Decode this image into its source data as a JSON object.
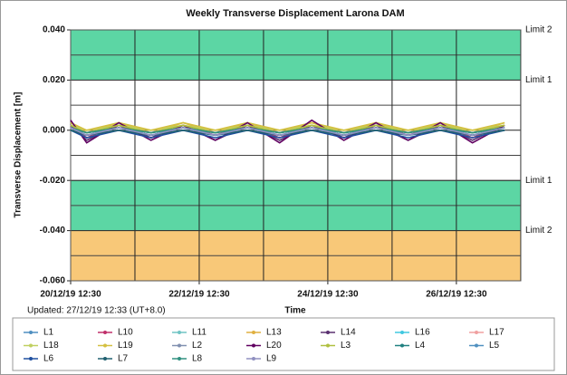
{
  "chart_data": {
    "type": "line",
    "title": "Weekly Transverse Displacement Larona DAM",
    "y_label": "Transverse Displacement [m]",
    "x_label": "Time",
    "note": "Updated: 27/12/19 12:33 (UT+8.0)",
    "x": [
      "2019-12-20 12:30",
      "2019-12-20 18:30",
      "2019-12-21 06:30",
      "2019-12-21 18:30",
      "2019-12-22 06:30",
      "2019-12-22 18:30",
      "2019-12-23 06:30",
      "2019-12-23 18:30",
      "2019-12-24 06:30",
      "2019-12-24 18:30",
      "2019-12-25 06:30",
      "2019-12-25 18:30",
      "2019-12-26 06:30",
      "2019-12-26 18:30",
      "2019-12-27 06:30"
    ],
    "xlim": [
      "2019-12-20 12:30",
      "2019-12-27 12:33"
    ],
    "xticks": [
      {
        "value": "2019-12-20 12:30",
        "label": "20/12/19 12:30"
      },
      {
        "value": "2019-12-22 12:30",
        "label": "22/12/19 12:30"
      },
      {
        "value": "2019-12-24 12:30",
        "label": "24/12/19 12:30"
      },
      {
        "value": "2019-12-26 12:30",
        "label": "26/12/19 12:30"
      }
    ],
    "minor_xticks": [
      "2019-12-21 12:30",
      "2019-12-23 12:30",
      "2019-12-25 12:30",
      "2019-12-27 12:30"
    ],
    "ylim": [
      -0.06,
      0.04
    ],
    "yticks": [
      {
        "value": 0.04,
        "label": "0.040"
      },
      {
        "value": 0.02,
        "label": "0.020"
      },
      {
        "value": 0,
        "label": "0.000"
      },
      {
        "value": -0.02,
        "label": "-0.020"
      },
      {
        "value": -0.04,
        "label": "-0.040"
      },
      {
        "value": -0.06,
        "label": "-0.060"
      }
    ],
    "minor_yticks": [
      0.03,
      0.01,
      -0.01,
      -0.03,
      -0.05
    ],
    "grid": true,
    "zones": [
      {
        "from": 0.02,
        "to": 0.04,
        "color": "#5cd6a4"
      },
      {
        "from": -0.04,
        "to": -0.02,
        "color": "#5cd6a4"
      },
      {
        "from": -0.06,
        "to": -0.04,
        "color": "#f8c878"
      }
    ],
    "limits": [
      {
        "label": "Limit 2",
        "value": 0.04
      },
      {
        "label": "Limit 1",
        "value": 0.02
      },
      {
        "label": "Limit 1",
        "value": -0.02
      },
      {
        "label": "Limit 2",
        "value": -0.04
      }
    ],
    "series": [
      {
        "name": "L1",
        "color": "#4f8fc0",
        "values": [
          0.001,
          -0.002,
          0.001,
          -0.002,
          0.001,
          -0.002,
          0.001,
          -0.002,
          0.001,
          -0.002,
          0.001,
          -0.002,
          0.001,
          -0.002,
          0.001
        ]
      },
      {
        "name": "L10",
        "color": "#c0306a",
        "values": [
          0.002,
          -0.003,
          0.002,
          -0.003,
          0.002,
          -0.002,
          0.002,
          -0.003,
          0.002,
          -0.003,
          0.002,
          -0.002,
          0.002,
          -0.003,
          0.002
        ]
      },
      {
        "name": "L11",
        "color": "#70c4c4",
        "values": [
          0.001,
          -0.001,
          0.001,
          -0.001,
          0.001,
          -0.001,
          0.001,
          -0.001,
          0.001,
          -0.001,
          0.001,
          -0.001,
          0.001,
          -0.001,
          0.001
        ]
      },
      {
        "name": "L13",
        "color": "#e0b040",
        "values": [
          0.003,
          -0.001,
          0.003,
          -0.001,
          0.003,
          -0.001,
          0.003,
          -0.001,
          0.003,
          -0.001,
          0.003,
          -0.001,
          0.003,
          -0.001,
          0.003
        ]
      },
      {
        "name": "L14",
        "color": "#5a3070",
        "values": [
          0.002,
          -0.004,
          0.002,
          -0.003,
          0.002,
          -0.004,
          0.002,
          -0.004,
          0.002,
          -0.003,
          0.002,
          -0.004,
          0.002,
          -0.004,
          0.002
        ]
      },
      {
        "name": "L16",
        "color": "#40c8e0",
        "values": [
          0,
          -0.002,
          0,
          -0.002,
          0,
          -0.002,
          0,
          -0.002,
          0,
          -0.002,
          0,
          -0.002,
          0,
          -0.002,
          0
        ]
      },
      {
        "name": "L17",
        "color": "#f0a0a0",
        "values": [
          0.002,
          -0.001,
          0.002,
          -0.001,
          0.002,
          -0.001,
          0.002,
          -0.001,
          0.002,
          -0.001,
          0.002,
          -0.001,
          0.002,
          -0.001,
          0.002
        ]
      },
      {
        "name": "L18",
        "color": "#c0d060",
        "values": [
          0.002,
          0,
          0.002,
          0,
          0.002,
          0,
          0.002,
          0,
          0.002,
          0,
          0.002,
          0,
          0.002,
          0,
          0.002
        ]
      },
      {
        "name": "L19",
        "color": "#d4c040",
        "values": [
          0.003,
          0,
          0.003,
          0,
          0.003,
          0,
          0.003,
          0,
          0.003,
          0,
          0.003,
          0,
          0.003,
          0,
          0.003
        ]
      },
      {
        "name": "L2",
        "color": "#8090b0",
        "values": [
          0.001,
          -0.002,
          0.001,
          -0.002,
          0.001,
          -0.002,
          0.001,
          -0.002,
          0.001,
          -0.002,
          0.001,
          -0.002,
          0.001,
          -0.002,
          0.001
        ]
      },
      {
        "name": "L20",
        "color": "#600060",
        "values": [
          0.004,
          -0.005,
          0.003,
          -0.004,
          0.002,
          -0.004,
          0.003,
          -0.005,
          0.004,
          -0.004,
          0.003,
          -0.004,
          0.003,
          -0.005,
          0.002
        ]
      },
      {
        "name": "L3",
        "color": "#b0c040",
        "values": [
          0.002,
          -0.001,
          0.002,
          -0.001,
          0.002,
          -0.001,
          0.002,
          -0.001,
          0.002,
          -0.001,
          0.002,
          -0.001,
          0.002,
          -0.001,
          0.002
        ]
      },
      {
        "name": "L4",
        "color": "#208080",
        "values": [
          0.001,
          -0.001,
          0.001,
          -0.001,
          0.001,
          -0.001,
          0.001,
          -0.001,
          0.001,
          -0.001,
          0.001,
          -0.001,
          0.001,
          -0.001,
          0.001
        ]
      },
      {
        "name": "L5",
        "color": "#5090c0",
        "values": [
          0.001,
          -0.002,
          0.001,
          -0.002,
          0.001,
          -0.002,
          0.001,
          -0.002,
          0.001,
          -0.002,
          0.001,
          -0.002,
          0.001,
          -0.002,
          0.001
        ]
      },
      {
        "name": "L6",
        "color": "#2050a0",
        "values": [
          0,
          -0.003,
          0,
          -0.003,
          0,
          -0.003,
          0,
          -0.003,
          0,
          -0.003,
          0,
          -0.003,
          0,
          -0.003,
          0
        ]
      },
      {
        "name": "L7",
        "color": "#206070",
        "values": [
          0,
          -0.002,
          0,
          -0.002,
          0,
          -0.002,
          0,
          -0.002,
          0,
          -0.002,
          0,
          -0.002,
          0,
          -0.002,
          0
        ]
      },
      {
        "name": "L8",
        "color": "#309080",
        "values": [
          0.001,
          -0.001,
          0.001,
          -0.001,
          0.001,
          -0.001,
          0.001,
          -0.001,
          0.001,
          -0.001,
          0.001,
          -0.001,
          0.001,
          -0.001,
          0.001
        ]
      },
      {
        "name": "L9",
        "color": "#9090c0",
        "values": [
          0.001,
          -0.002,
          0.001,
          -0.002,
          0.001,
          -0.002,
          0.001,
          -0.002,
          0.001,
          -0.002,
          0.001,
          -0.002,
          0.001,
          -0.002,
          0.001
        ]
      }
    ]
  }
}
